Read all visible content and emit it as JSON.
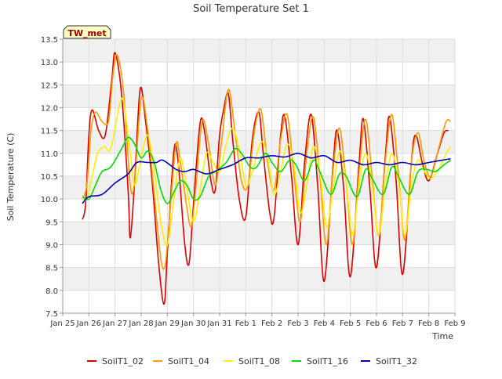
{
  "chart_data": {
    "type": "line",
    "title": "Soil Temperature Set 1",
    "xlabel": "Time",
    "ylabel": "Soil Temperature (C)",
    "station_label": "TW_met",
    "ylim": [
      7.5,
      13.5
    ],
    "xlim": [
      "Jan 25",
      "Feb 9"
    ],
    "x_ticks": [
      "Jan 25",
      "Jan 26",
      "Jan 27",
      "Jan 28",
      "Jan 29",
      "Jan 30",
      "Jan 31",
      "Feb 1",
      "Feb 2",
      "Feb 3",
      "Feb 4",
      "Feb 5",
      "Feb 6",
      "Feb 7",
      "Feb 8",
      "Feb 9"
    ],
    "y_ticks": [
      "7.5",
      "8.0",
      "8.5",
      "9.0",
      "9.5",
      "10.0",
      "10.5",
      "11.0",
      "11.5",
      "12.0",
      "12.5",
      "13.0",
      "13.5"
    ],
    "grid": true,
    "legend_position": "bottom",
    "x": [
      "Jan 25",
      "Jan 26",
      "Jan 27",
      "Jan 28",
      "Jan 29",
      "Jan 30",
      "Jan 31",
      "Feb 1",
      "Feb 2",
      "Feb 3",
      "Feb 4",
      "Feb 5",
      "Feb 6",
      "Feb 7",
      "Feb 8"
    ],
    "series": [
      {
        "name": "SoilT1_02",
        "color": "#dd0000",
        "points": [
          [
            "Jan 25 18:00",
            9.55
          ],
          [
            "Jan 25 21:00",
            9.9
          ],
          [
            "Jan 26 00:00",
            11.4
          ],
          [
            "Jan 26 03:00",
            11.95
          ],
          [
            "Jan 26 09:00",
            11.5
          ],
          [
            "Jan 26 15:00",
            11.4
          ],
          [
            "Jan 26 21:00",
            12.6
          ],
          [
            "Jan 27 00:00",
            13.2
          ],
          [
            "Jan 27 06:00",
            12.3
          ],
          [
            "Jan 27 12:00",
            10.2
          ],
          [
            "Jan 27 14:00",
            9.15
          ],
          [
            "Jan 27 18:00",
            10.4
          ],
          [
            "Jan 27 23:00",
            12.4
          ],
          [
            "Jan 28 04:00",
            11.7
          ],
          [
            "Jan 28 10:00",
            10.4
          ],
          [
            "Jan 28 16:00",
            8.6
          ],
          [
            "Jan 28 21:00",
            7.7
          ],
          [
            "Jan 29 00:00",
            8.8
          ],
          [
            "Jan 29 06:00",
            11.05
          ],
          [
            "Jan 29 10:00",
            10.8
          ],
          [
            "Jan 29 16:00",
            9.0
          ],
          [
            "Jan 29 20:00",
            8.6
          ],
          [
            "Jan 30 00:00",
            9.9
          ],
          [
            "Jan 30 06:00",
            11.65
          ],
          [
            "Jan 30 10:00",
            11.5
          ],
          [
            "Jan 30 16:00",
            10.4
          ],
          [
            "Jan 30 20:00",
            10.2
          ],
          [
            "Jan 31 00:00",
            11.4
          ],
          [
            "Jan 31 04:00",
            12.0
          ],
          [
            "Jan 31 08:00",
            12.3
          ],
          [
            "Jan 31 12:00",
            11.3
          ],
          [
            "Jan 31 18:00",
            10.0
          ],
          [
            "Feb 1 00:00",
            9.6
          ],
          [
            "Feb 1 06:00",
            11.3
          ],
          [
            "Feb 1 12:00",
            11.9
          ],
          [
            "Feb 1 16:00",
            11.0
          ],
          [
            "Feb 1 22:00",
            9.7
          ],
          [
            "Feb 2 02:00",
            9.6
          ],
          [
            "Feb 2 08:00",
            11.4
          ],
          [
            "Feb 2 12:00",
            11.8
          ],
          [
            "Feb 2 18:00",
            10.5
          ],
          [
            "Feb 3 00:00",
            9.0
          ],
          [
            "Feb 3 06:00",
            10.8
          ],
          [
            "Feb 3 12:00",
            11.85
          ],
          [
            "Feb 3 18:00",
            10.3
          ],
          [
            "Feb 4 00:00",
            8.2
          ],
          [
            "Feb 4 08:00",
            10.7
          ],
          [
            "Feb 4 12:00",
            11.5
          ],
          [
            "Feb 4 18:00",
            10.2
          ],
          [
            "Feb 5 00:00",
            8.3
          ],
          [
            "Feb 5 08:00",
            10.8
          ],
          [
            "Feb 5 12:00",
            11.75
          ],
          [
            "Feb 5 18:00",
            10.2
          ],
          [
            "Feb 6 00:00",
            8.5
          ],
          [
            "Feb 6 08:00",
            10.9
          ],
          [
            "Feb 6 12:00",
            11.8
          ],
          [
            "Feb 6 18:00",
            10.4
          ],
          [
            "Feb 7 00:00",
            8.35
          ],
          [
            "Feb 7 08:00",
            10.8
          ],
          [
            "Feb 7 12:00",
            11.4
          ],
          [
            "Feb 7 18:00",
            10.8
          ],
          [
            "Feb 8 00:00",
            10.4
          ],
          [
            "Feb 8 08:00",
            11.0
          ],
          [
            "Feb 8 14:00",
            11.45
          ],
          [
            "Feb 8 18:00",
            11.5
          ]
        ]
      },
      {
        "name": "SoilT1_04",
        "color": "#ff9900",
        "points": [
          [
            "Jan 25 18:00",
            10.0
          ],
          [
            "Jan 25 22:00",
            10.3
          ],
          [
            "Jan 26 02:00",
            11.5
          ],
          [
            "Jan 26 06:00",
            11.9
          ],
          [
            "Jan 26 12:00",
            11.7
          ],
          [
            "Jan 26 18:00",
            11.7
          ],
          [
            "Jan 26 22:00",
            12.7
          ],
          [
            "Jan 27 02:00",
            13.15
          ],
          [
            "Jan 27 08:00",
            12.3
          ],
          [
            "Jan 27 14:00",
            10.3
          ],
          [
            "Jan 27 18:00",
            10.4
          ],
          [
            "Jan 28 00:00",
            12.2
          ],
          [
            "Jan 28 06:00",
            11.5
          ],
          [
            "Jan 28 12:00",
            10.1
          ],
          [
            "Jan 28 18:00",
            8.7
          ],
          [
            "Jan 28 22:00",
            8.55
          ],
          [
            "Jan 29 02:00",
            9.6
          ],
          [
            "Jan 29 08:00",
            11.2
          ],
          [
            "Jan 29 12:00",
            10.8
          ],
          [
            "Jan 29 18:00",
            9.8
          ],
          [
            "Jan 29 22:00",
            9.4
          ],
          [
            "Jan 30 02:00",
            10.2
          ],
          [
            "Jan 30 08:00",
            11.7
          ],
          [
            "Jan 30 14:00",
            11.2
          ],
          [
            "Jan 30 20:00",
            10.3
          ],
          [
            "Jan 31 02:00",
            11.3
          ],
          [
            "Jan 31 08:00",
            12.4
          ],
          [
            "Jan 31 14:00",
            11.5
          ],
          [
            "Jan 31 20:00",
            10.4
          ],
          [
            "Feb 1 02:00",
            10.3
          ],
          [
            "Feb 1 08:00",
            11.5
          ],
          [
            "Feb 1 14:00",
            11.95
          ],
          [
            "Feb 1 20:00",
            10.8
          ],
          [
            "Feb 2 02:00",
            10.2
          ],
          [
            "Feb 2 08:00",
            11.3
          ],
          [
            "Feb 2 14:00",
            11.85
          ],
          [
            "Feb 2 20:00",
            10.6
          ],
          [
            "Feb 3 02:00",
            9.5
          ],
          [
            "Feb 3 08:00",
            11.0
          ],
          [
            "Feb 3 14:00",
            11.8
          ],
          [
            "Feb 3 20:00",
            10.5
          ],
          [
            "Feb 4 02:00",
            9.0
          ],
          [
            "Feb 4 08:00",
            10.6
          ],
          [
            "Feb 4 14:00",
            11.55
          ],
          [
            "Feb 4 20:00",
            10.4
          ],
          [
            "Feb 5 02:00",
            9.0
          ],
          [
            "Feb 5 08:00",
            10.6
          ],
          [
            "Feb 5 14:00",
            11.75
          ],
          [
            "Feb 5 20:00",
            10.5
          ],
          [
            "Feb 6 02:00",
            9.2
          ],
          [
            "Feb 6 08:00",
            10.8
          ],
          [
            "Feb 6 14:00",
            11.85
          ],
          [
            "Feb 6 20:00",
            10.6
          ],
          [
            "Feb 7 02:00",
            9.1
          ],
          [
            "Feb 7 08:00",
            10.8
          ],
          [
            "Feb 7 14:00",
            11.45
          ],
          [
            "Feb 7 20:00",
            10.8
          ],
          [
            "Feb 8 02:00",
            10.5
          ],
          [
            "Feb 8 10:00",
            11.2
          ],
          [
            "Feb 8 16:00",
            11.7
          ],
          [
            "Feb 8 20:00",
            11.7
          ]
        ]
      },
      {
        "name": "SoilT1_08",
        "color": "#ffee00",
        "points": [
          [
            "Jan 25 18:00",
            10.05
          ],
          [
            "Jan 25 22:00",
            10.0
          ],
          [
            "Jan 26 04:00",
            10.6
          ],
          [
            "Jan 26 08:00",
            11.0
          ],
          [
            "Jan 26 14:00",
            11.15
          ],
          [
            "Jan 26 20:00",
            11.1
          ],
          [
            "Jan 27 04:00",
            12.05
          ],
          [
            "Jan 27 08:00",
            12.1
          ],
          [
            "Jan 27 14:00",
            11.0
          ],
          [
            "Jan 27 18:00",
            10.3
          ],
          [
            "Jan 28 00:00",
            10.9
          ],
          [
            "Jan 28 06:00",
            11.4
          ],
          [
            "Jan 28 12:00",
            10.6
          ],
          [
            "Jan 28 18:00",
            9.5
          ],
          [
            "Jan 29 00:00",
            9.0
          ],
          [
            "Jan 29 06:00",
            10.0
          ],
          [
            "Jan 29 12:00",
            10.9
          ],
          [
            "Jan 29 18:00",
            10.2
          ],
          [
            "Jan 30 00:00",
            9.5
          ],
          [
            "Jan 30 06:00",
            10.2
          ],
          [
            "Jan 30 12:00",
            11.0
          ],
          [
            "Jan 30 18:00",
            10.8
          ],
          [
            "Jan 31 00:00",
            10.6
          ],
          [
            "Jan 31 06:00",
            11.2
          ],
          [
            "Jan 31 12:00",
            11.55
          ],
          [
            "Jan 31 18:00",
            11.1
          ],
          [
            "Feb 1 00:00",
            10.3
          ],
          [
            "Feb 1 06:00",
            10.6
          ],
          [
            "Feb 1 14:00",
            11.25
          ],
          [
            "Feb 1 20:00",
            10.9
          ],
          [
            "Feb 2 02:00",
            10.1
          ],
          [
            "Feb 2 08:00",
            10.6
          ],
          [
            "Feb 2 14:00",
            11.2
          ],
          [
            "Feb 2 20:00",
            10.8
          ],
          [
            "Feb 3 02:00",
            9.7
          ],
          [
            "Feb 3 08:00",
            10.3
          ],
          [
            "Feb 3 14:00",
            11.15
          ],
          [
            "Feb 3 20:00",
            10.6
          ],
          [
            "Feb 4 02:00",
            9.4
          ],
          [
            "Feb 4 08:00",
            10.2
          ],
          [
            "Feb 4 14:00",
            11.05
          ],
          [
            "Feb 4 20:00",
            10.4
          ],
          [
            "Feb 5 02:00",
            9.2
          ],
          [
            "Feb 5 08:00",
            10.3
          ],
          [
            "Feb 5 14:00",
            11.0
          ],
          [
            "Feb 5 20:00",
            10.3
          ],
          [
            "Feb 6 02:00",
            9.2
          ],
          [
            "Feb 6 08:00",
            10.3
          ],
          [
            "Feb 6 14:00",
            11.0
          ],
          [
            "Feb 6 20:00",
            10.4
          ],
          [
            "Feb 7 02:00",
            9.2
          ],
          [
            "Feb 7 08:00",
            10.3
          ],
          [
            "Feb 7 14:00",
            10.85
          ],
          [
            "Feb 7 20:00",
            10.6
          ],
          [
            "Feb 8 02:00",
            10.45
          ],
          [
            "Feb 8 10:00",
            10.7
          ],
          [
            "Feb 8 16:00",
            11.0
          ],
          [
            "Feb 8 20:00",
            11.15
          ]
        ]
      },
      {
        "name": "SoilT1_16",
        "color": "#00dd00",
        "points": [
          [
            "Jan 25 18:00",
            10.05
          ],
          [
            "Jan 26 00:00",
            10.0
          ],
          [
            "Jan 26 06:00",
            10.3
          ],
          [
            "Jan 26 12:00",
            10.6
          ],
          [
            "Jan 26 20:00",
            10.7
          ],
          [
            "Jan 27 06:00",
            11.1
          ],
          [
            "Jan 27 12:00",
            11.35
          ],
          [
            "Jan 27 18:00",
            11.2
          ],
          [
            "Jan 28 00:00",
            10.9
          ],
          [
            "Jan 28 06:00",
            11.05
          ],
          [
            "Jan 28 12:00",
            10.8
          ],
          [
            "Jan 28 18:00",
            10.2
          ],
          [
            "Jan 29 00:00",
            9.9
          ],
          [
            "Jan 29 06:00",
            10.15
          ],
          [
            "Jan 29 12:00",
            10.4
          ],
          [
            "Jan 29 18:00",
            10.3
          ],
          [
            "Jan 30 00:00",
            10.0
          ],
          [
            "Jan 30 06:00",
            10.05
          ],
          [
            "Jan 30 14:00",
            10.5
          ],
          [
            "Jan 30 20:00",
            10.6
          ],
          [
            "Jan 31 06:00",
            10.8
          ],
          [
            "Jan 31 14:00",
            11.1
          ],
          [
            "Jan 31 20:00",
            11.0
          ],
          [
            "Feb 1 04:00",
            10.7
          ],
          [
            "Feb 1 10:00",
            10.7
          ],
          [
            "Feb 1 18:00",
            11.0
          ],
          [
            "Feb 2 00:00",
            10.8
          ],
          [
            "Feb 2 08:00",
            10.6
          ],
          [
            "Feb 2 16:00",
            10.85
          ],
          [
            "Feb 2 22:00",
            10.75
          ],
          [
            "Feb 3 06:00",
            10.4
          ],
          [
            "Feb 3 14:00",
            10.85
          ],
          [
            "Feb 3 20:00",
            10.6
          ],
          [
            "Feb 4 06:00",
            10.1
          ],
          [
            "Feb 4 14:00",
            10.55
          ],
          [
            "Feb 4 20:00",
            10.5
          ],
          [
            "Feb 5 06:00",
            10.05
          ],
          [
            "Feb 5 14:00",
            10.65
          ],
          [
            "Feb 5 20:00",
            10.45
          ],
          [
            "Feb 6 06:00",
            10.1
          ],
          [
            "Feb 6 14:00",
            10.7
          ],
          [
            "Feb 6 20:00",
            10.5
          ],
          [
            "Feb 7 06:00",
            10.1
          ],
          [
            "Feb 7 14:00",
            10.6
          ],
          [
            "Feb 7 22:00",
            10.65
          ],
          [
            "Feb 8 06:00",
            10.6
          ],
          [
            "Feb 8 14:00",
            10.75
          ],
          [
            "Feb 8 20:00",
            10.85
          ]
        ]
      },
      {
        "name": "SoilT1_32",
        "color": "#0000bb",
        "points": [
          [
            "Jan 25 18:00",
            9.9
          ],
          [
            "Jan 26 00:00",
            10.05
          ],
          [
            "Jan 26 12:00",
            10.1
          ],
          [
            "Jan 27 00:00",
            10.35
          ],
          [
            "Jan 27 12:00",
            10.55
          ],
          [
            "Jan 27 20:00",
            10.8
          ],
          [
            "Jan 28 06:00",
            10.8
          ],
          [
            "Jan 28 14:00",
            10.8
          ],
          [
            "Jan 28 20:00",
            10.85
          ],
          [
            "Jan 29 08:00",
            10.65
          ],
          [
            "Jan 29 16:00",
            10.6
          ],
          [
            "Jan 30 00:00",
            10.65
          ],
          [
            "Jan 30 12:00",
            10.55
          ],
          [
            "Jan 31 00:00",
            10.65
          ],
          [
            "Jan 31 12:00",
            10.75
          ],
          [
            "Feb 1 00:00",
            10.9
          ],
          [
            "Feb 1 12:00",
            10.9
          ],
          [
            "Feb 2 00:00",
            10.95
          ],
          [
            "Feb 2 12:00",
            10.92
          ],
          [
            "Feb 3 00:00",
            11.0
          ],
          [
            "Feb 3 12:00",
            10.9
          ],
          [
            "Feb 4 00:00",
            10.95
          ],
          [
            "Feb 4 12:00",
            10.8
          ],
          [
            "Feb 5 00:00",
            10.85
          ],
          [
            "Feb 5 12:00",
            10.75
          ],
          [
            "Feb 6 00:00",
            10.8
          ],
          [
            "Feb 6 12:00",
            10.75
          ],
          [
            "Feb 7 00:00",
            10.8
          ],
          [
            "Feb 7 12:00",
            10.75
          ],
          [
            "Feb 8 00:00",
            10.8
          ],
          [
            "Feb 8 12:00",
            10.85
          ],
          [
            "Feb 8 20:00",
            10.88
          ]
        ]
      }
    ]
  }
}
